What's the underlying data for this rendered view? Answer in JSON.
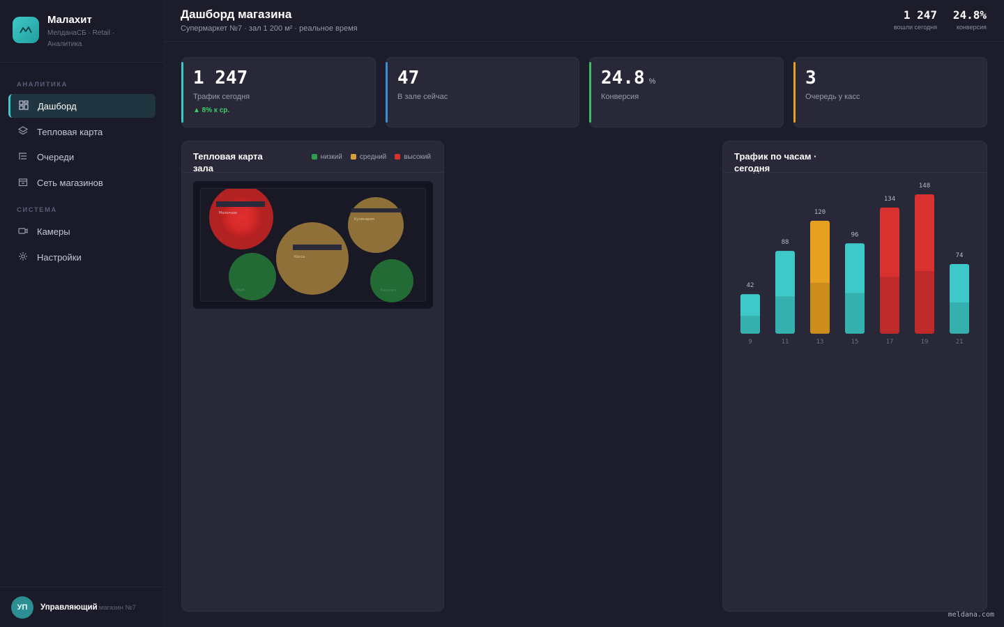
{
  "brand": {
    "name": "Малахит",
    "subtitle": "МелданаСБ · Retail · Аналитика"
  },
  "sidebar": {
    "sections": [
      {
        "title": "АНАЛИТИКА",
        "items": [
          {
            "label": "Дашборд",
            "icon": "dashboard-icon",
            "active": true
          },
          {
            "label": "Тепловая карта",
            "icon": "layers-icon"
          },
          {
            "label": "Очереди",
            "icon": "queue-icon"
          },
          {
            "label": "Сеть магазинов",
            "icon": "store-icon"
          }
        ]
      },
      {
        "title": "СИСТЕМА",
        "items": [
          {
            "label": "Камеры",
            "icon": "camera-icon"
          },
          {
            "label": "Настройки",
            "icon": "gear-icon"
          }
        ]
      }
    ]
  },
  "user": {
    "initials": "УП",
    "name": "Управляющий",
    "role": "магазин №7"
  },
  "header": {
    "title": "Дашборд магазина",
    "subtitle": "Супермаркет №7 · зал 1 200 м² · реальное время",
    "stats": [
      {
        "value": "1 247",
        "label": "вошли сегодня"
      },
      {
        "value": "24.8%",
        "label": "конверсия"
      }
    ]
  },
  "kpis": [
    {
      "value": "1 247",
      "unit": "",
      "label": "Трафик сегодня",
      "trend": "▲ 8% к ср.",
      "accent": "#3ec8c8"
    },
    {
      "value": "47",
      "unit": "",
      "label": "В зале сейчас",
      "trend": "",
      "accent": "#3b8fd6"
    },
    {
      "value": "24.8",
      "unit": "%",
      "label": "Конверсия",
      "trend": "",
      "accent": "#3dbb6a"
    },
    {
      "value": "3",
      "unit": "",
      "label": "Очередь у касс",
      "trend": "",
      "accent": "#e8a020"
    }
  ],
  "heatmap": {
    "title": "Тепловая карта зала",
    "legend": [
      {
        "label": "низкий",
        "color": "#2f9e4a"
      },
      {
        "label": "средний",
        "color": "#d6a23a"
      },
      {
        "label": "высокий",
        "color": "#d93030"
      }
    ],
    "zones": [
      {
        "label": "Молочное",
        "level": "high"
      },
      {
        "label": "Касса",
        "level": "medium"
      },
      {
        "label": "Кулинария",
        "level": "medium"
      },
      {
        "label": "Хлеб",
        "level": "low"
      },
      {
        "label": "Бакалея",
        "level": "low"
      }
    ]
  },
  "traffic": {
    "title": "Трафик по часам · сегодня"
  },
  "chart_data": {
    "type": "bar",
    "title": "Трафик по часам · сегодня",
    "categories": [
      "9",
      "11",
      "13",
      "15",
      "17",
      "19",
      "21"
    ],
    "values": [
      42,
      88,
      120,
      96,
      134,
      148,
      74
    ],
    "colors": [
      "#3ec8c8",
      "#3ec8c8",
      "#e8a020",
      "#3ec8c8",
      "#d93030",
      "#d93030",
      "#3ec8c8"
    ],
    "ylim": [
      0,
      148
    ],
    "grid": false,
    "xlabel": "",
    "ylabel": ""
  },
  "footer": "meldana.com"
}
